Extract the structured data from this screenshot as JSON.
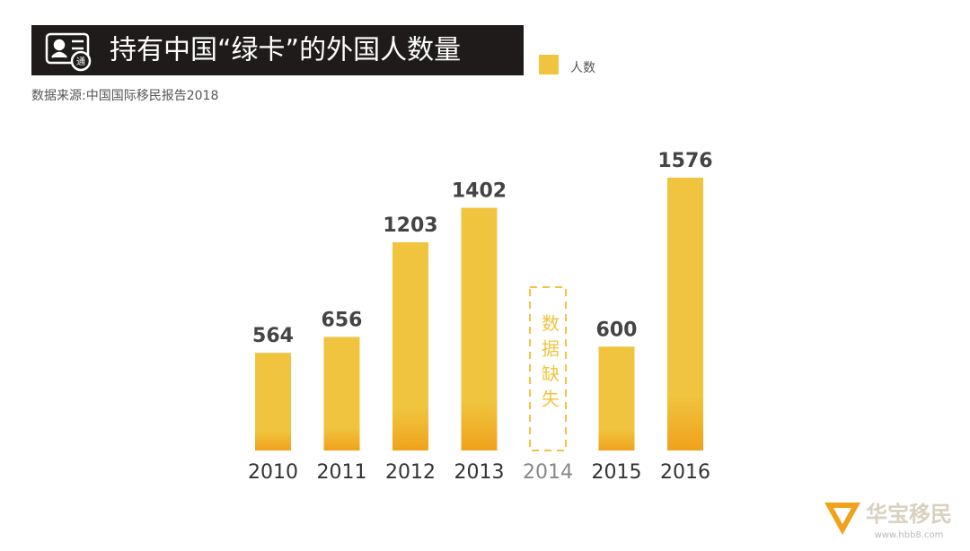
{
  "chart_data": {
    "type": "bar",
    "title": "持有中国“绿卡”的外国人数量",
    "source": "数据来源:中国国际移民报告2018",
    "categories": [
      "2010",
      "2011",
      "2012",
      "2013",
      "2014",
      "2015",
      "2016"
    ],
    "series": [
      {
        "name": "人数",
        "color": "#f0c43e",
        "values": [
          564,
          656,
          1203,
          1402,
          null,
          600,
          1576
        ]
      }
    ],
    "missing_label": "数据缺失",
    "watermark": {
      "name": "华宝移民",
      "url": "www.hbb8.com"
    }
  }
}
